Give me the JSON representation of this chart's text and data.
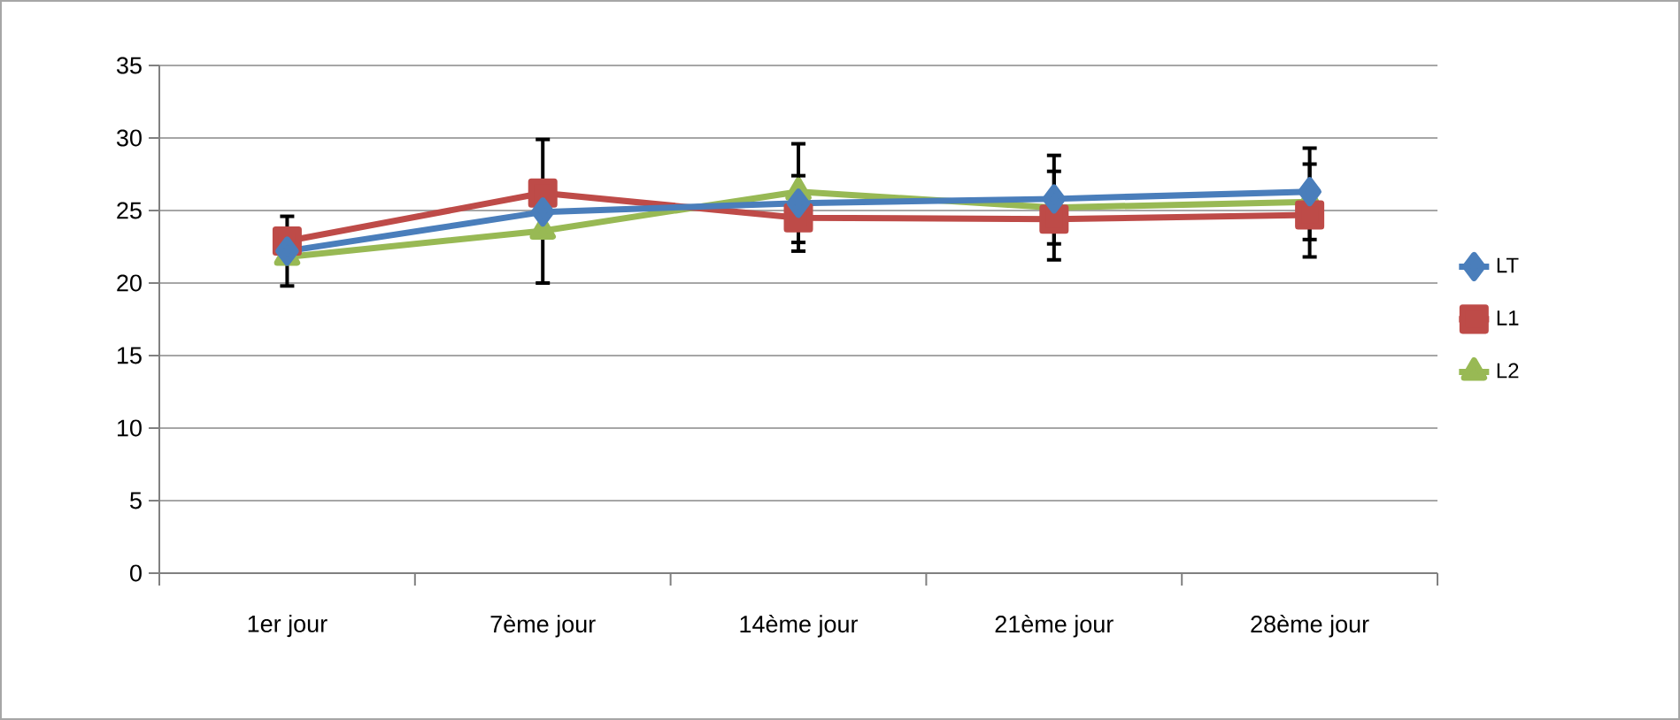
{
  "chart_data": {
    "type": "line",
    "categories": [
      "1er jour",
      "7ème jour",
      "14ème jour",
      "21ème jour",
      "28ème jour"
    ],
    "series": [
      {
        "name": "LT",
        "color": "#4a7ebb",
        "marker": "diamond",
        "values": [
          22.2,
          24.9,
          25.5,
          25.8,
          26.3
        ],
        "errors": [
          null,
          [
            20.0,
            29.9
          ],
          null,
          [
            21.6,
            28.8
          ],
          [
            21.8,
            29.3
          ]
        ]
      },
      {
        "name": "L1",
        "color": "#be4b48",
        "marker": "square",
        "values": [
          22.9,
          26.2,
          24.5,
          24.4,
          24.7
        ],
        "errors": [
          [
            19.8,
            24.6
          ],
          null,
          [
            22.8,
            27.4
          ],
          null,
          null
        ]
      },
      {
        "name": "L2",
        "color": "#98b954",
        "marker": "triangle",
        "values": [
          21.8,
          23.6,
          26.3,
          25.2,
          25.6
        ],
        "errors": [
          null,
          null,
          [
            22.2,
            29.6
          ],
          [
            22.7,
            27.7
          ],
          [
            23.0,
            28.2
          ]
        ]
      }
    ],
    "ylim": [
      0,
      35
    ],
    "yticks": [
      0,
      5,
      10,
      15,
      20,
      25,
      30,
      35
    ],
    "grid": "y",
    "legend": "right",
    "line_style": "solid"
  }
}
